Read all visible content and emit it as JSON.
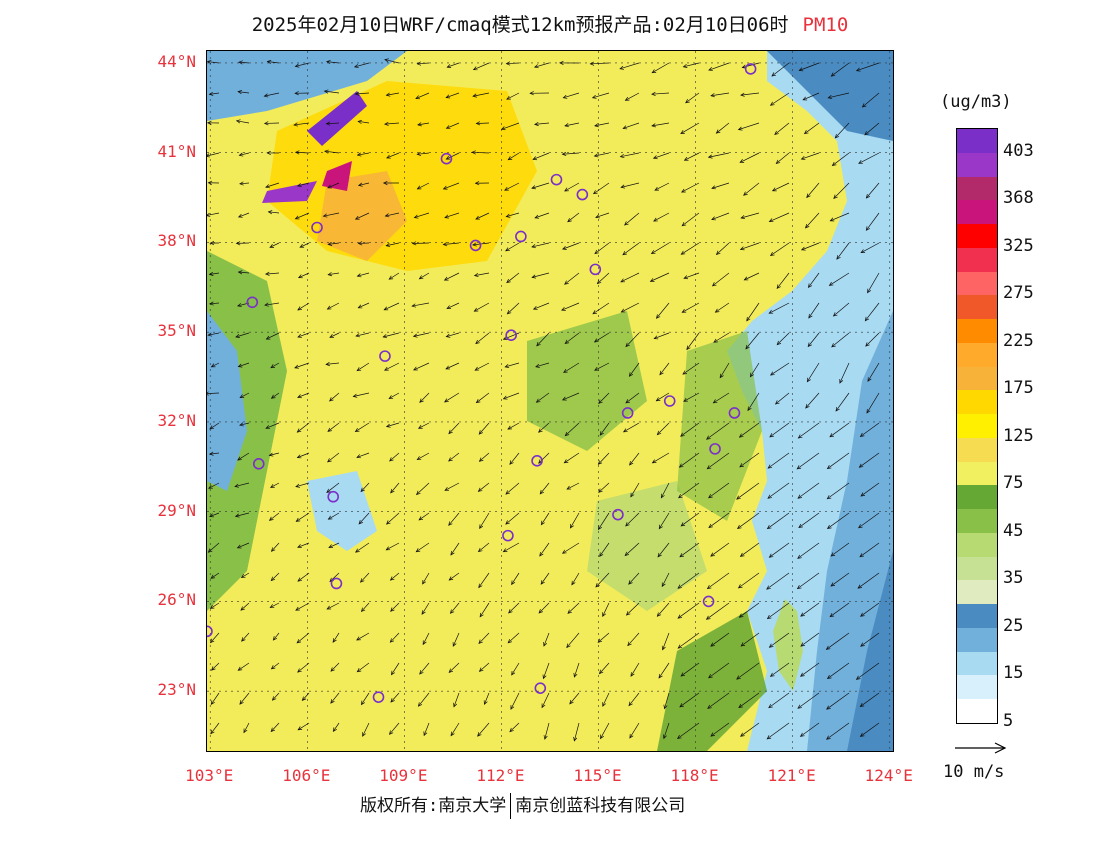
{
  "title": {
    "main": "2025年02月10日WRF/cmaq模式12km预报产品:02月10日06时",
    "species": "PM10"
  },
  "map": {
    "lat_labels": [
      "44°N",
      "41°N",
      "38°N",
      "35°N",
      "32°N",
      "29°N",
      "26°N",
      "23°N"
    ],
    "lon_labels": [
      "103°E",
      "106°E",
      "109°E",
      "112°E",
      "115°E",
      "118°E",
      "121°E",
      "124°E"
    ],
    "lat_values": [
      44,
      41,
      38,
      35,
      32,
      29,
      26,
      23
    ],
    "lon_values": [
      103,
      106,
      109,
      112,
      115,
      118,
      121,
      124
    ],
    "extent": {
      "lon_min": 102.9,
      "lon_max": 124.1,
      "lat_min": 21.0,
      "lat_max": 44.4
    },
    "city_markers": [
      [
        119.7,
        43.8
      ],
      [
        110.3,
        40.8
      ],
      [
        113.7,
        40.1
      ],
      [
        114.5,
        39.6
      ],
      [
        106.3,
        38.5
      ],
      [
        111.2,
        37.9
      ],
      [
        112.6,
        38.2
      ],
      [
        114.9,
        37.1
      ],
      [
        104.3,
        36.0
      ],
      [
        112.3,
        34.9
      ],
      [
        108.4,
        34.2
      ],
      [
        115.9,
        32.3
      ],
      [
        117.2,
        32.7
      ],
      [
        119.2,
        32.3
      ],
      [
        118.6,
        31.1
      ],
      [
        104.5,
        30.6
      ],
      [
        113.1,
        30.7
      ],
      [
        106.8,
        29.5
      ],
      [
        115.6,
        28.9
      ],
      [
        112.2,
        28.2
      ],
      [
        106.9,
        26.6
      ],
      [
        118.4,
        26.0
      ],
      [
        102.9,
        25.0
      ],
      [
        108.2,
        22.8
      ],
      [
        113.2,
        23.1
      ]
    ]
  },
  "colorbar": {
    "unit": "(ug/m3)",
    "labels": [
      "403",
      "368",
      "325",
      "275",
      "225",
      "175",
      "125",
      "75",
      "45",
      "35",
      "25",
      "15",
      "5"
    ],
    "colors": [
      "#7b2fc9",
      "#9a36c8",
      "#b32a6a",
      "#c9147c",
      "#ff0000",
      "#f0304e",
      "#ff6464",
      "#f0582a",
      "#ff8c00",
      "#ffaa2a",
      "#f7b23a",
      "#ffd800",
      "#fff000",
      "#f5dc50",
      "#f0f060",
      "#66a834",
      "#88c048",
      "#b8da72",
      "#c6e094",
      "#e0ecc0",
      "#4a8cc2",
      "#72b0dc",
      "#a8daf2",
      "#d8f0fc",
      "#ffffff"
    ]
  },
  "wind_reference": {
    "label": "10 m/s"
  },
  "footer": {
    "left": "版权所有:南京大学",
    "right": "南京创蓝科技有限公司"
  }
}
